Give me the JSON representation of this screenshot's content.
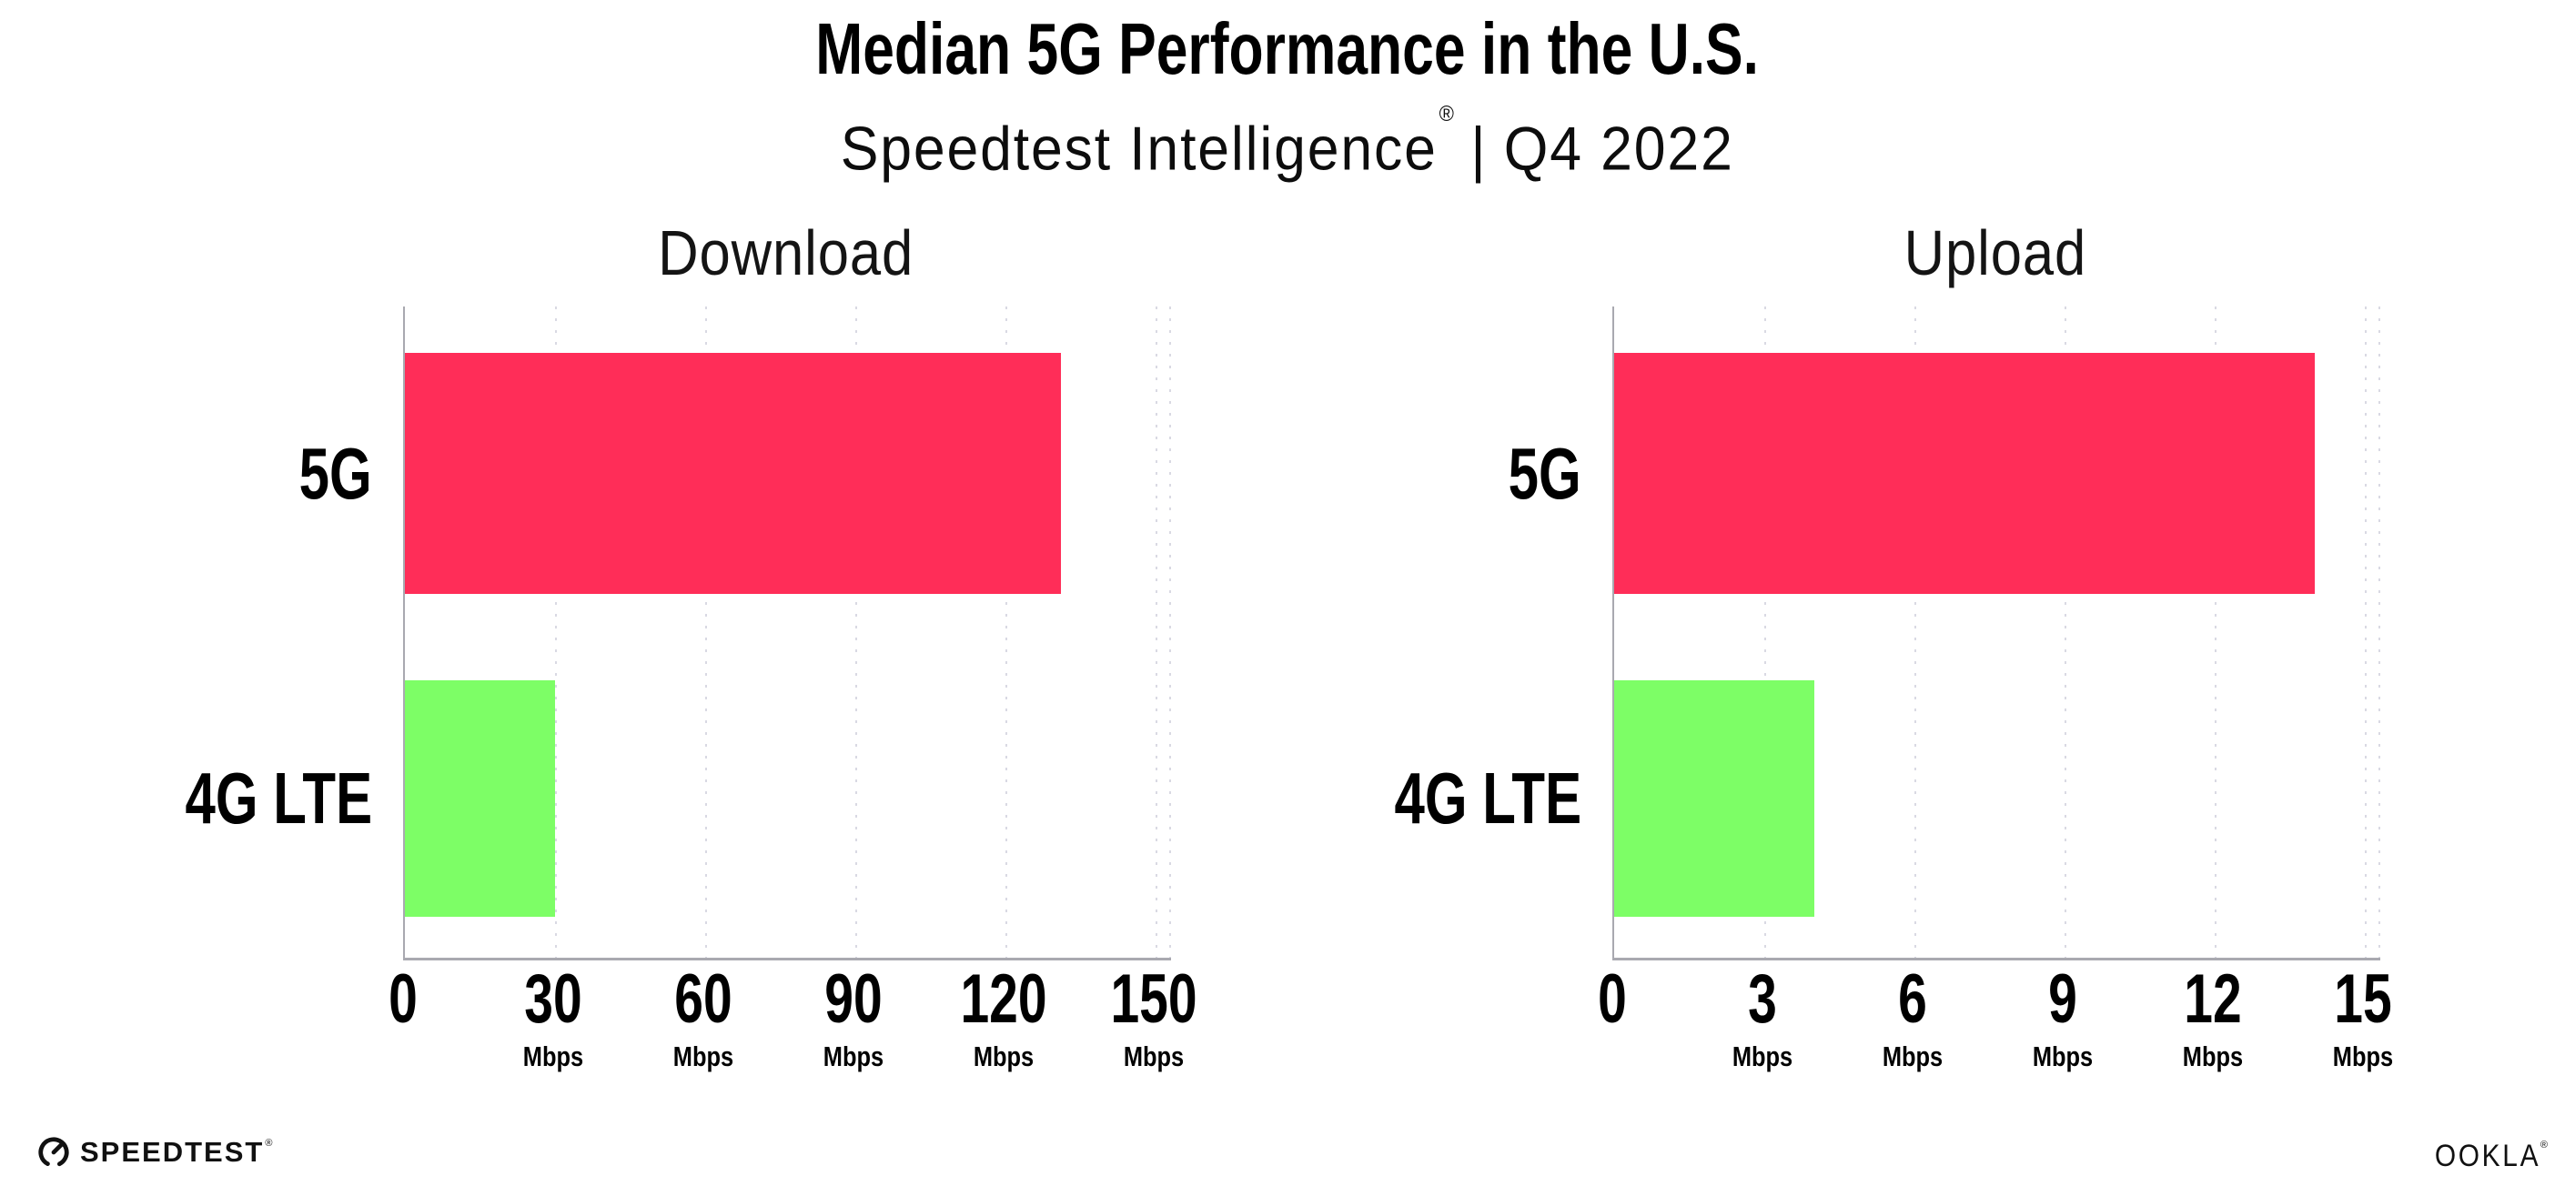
{
  "header": {
    "title": "Median 5G Performance in the U.S.",
    "subtitle_product": "Speedtest Intelligence",
    "subtitle_reg": "®",
    "subtitle_separator": "|",
    "subtitle_period": "Q4 2022"
  },
  "colors": {
    "bar_5g": "#FF2D58",
    "bar_4g": "#7DFE66",
    "axis": "#A9A9B0",
    "gridline": "#D9D9E3",
    "background": "#FFFFFF",
    "text": "#000000"
  },
  "chart_data": [
    {
      "type": "bar",
      "orientation": "horizontal",
      "title": "Download",
      "categories": [
        "5G",
        "4G LTE"
      ],
      "values": [
        131,
        30
      ],
      "unit": "Mbps",
      "x_ticks": [
        0,
        30,
        60,
        90,
        120,
        150
      ],
      "xlim": [
        0,
        153
      ],
      "grid": "dotted-vertical",
      "bar_colors": [
        "#FF2D58",
        "#7DFE66"
      ]
    },
    {
      "type": "bar",
      "orientation": "horizontal",
      "title": "Upload",
      "categories": [
        "5G",
        "4G LTE"
      ],
      "values": [
        14,
        4
      ],
      "unit": "Mbps",
      "x_ticks": [
        0,
        3,
        6,
        9,
        12,
        15
      ],
      "xlim": [
        0,
        15.3
      ],
      "grid": "dotted-vertical",
      "bar_colors": [
        "#FF2D58",
        "#7DFE66"
      ]
    }
  ],
  "footer": {
    "speedtest_logo_text": "SPEEDTEST",
    "speedtest_reg": "®",
    "ookla_logo_text": "OOKLA",
    "ookla_reg": "®"
  }
}
